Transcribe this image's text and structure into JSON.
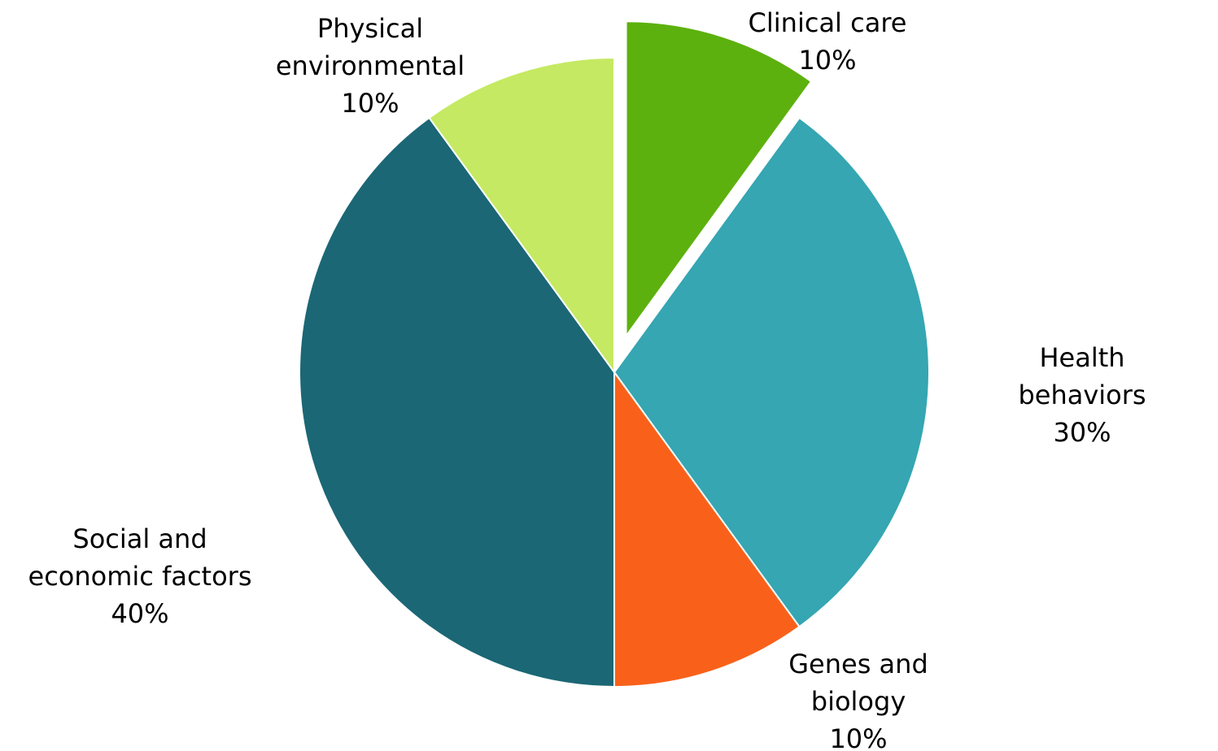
{
  "chart_data": {
    "type": "pie",
    "categories": [
      "Clinical care",
      "Health behaviors",
      "Genes and\nbiology",
      "Social and\neconomic factors",
      "Physical\nenvironmental"
    ],
    "values": [
      10,
      30,
      10,
      40,
      10
    ],
    "value_labels": [
      "10%",
      "30%",
      "10%",
      "40%",
      "10%"
    ],
    "colors": [
      "#5cb10e",
      "#35a6b2",
      "#f9611a",
      "#1b6775",
      "#c5e962"
    ],
    "exploded": "Clinical care"
  }
}
